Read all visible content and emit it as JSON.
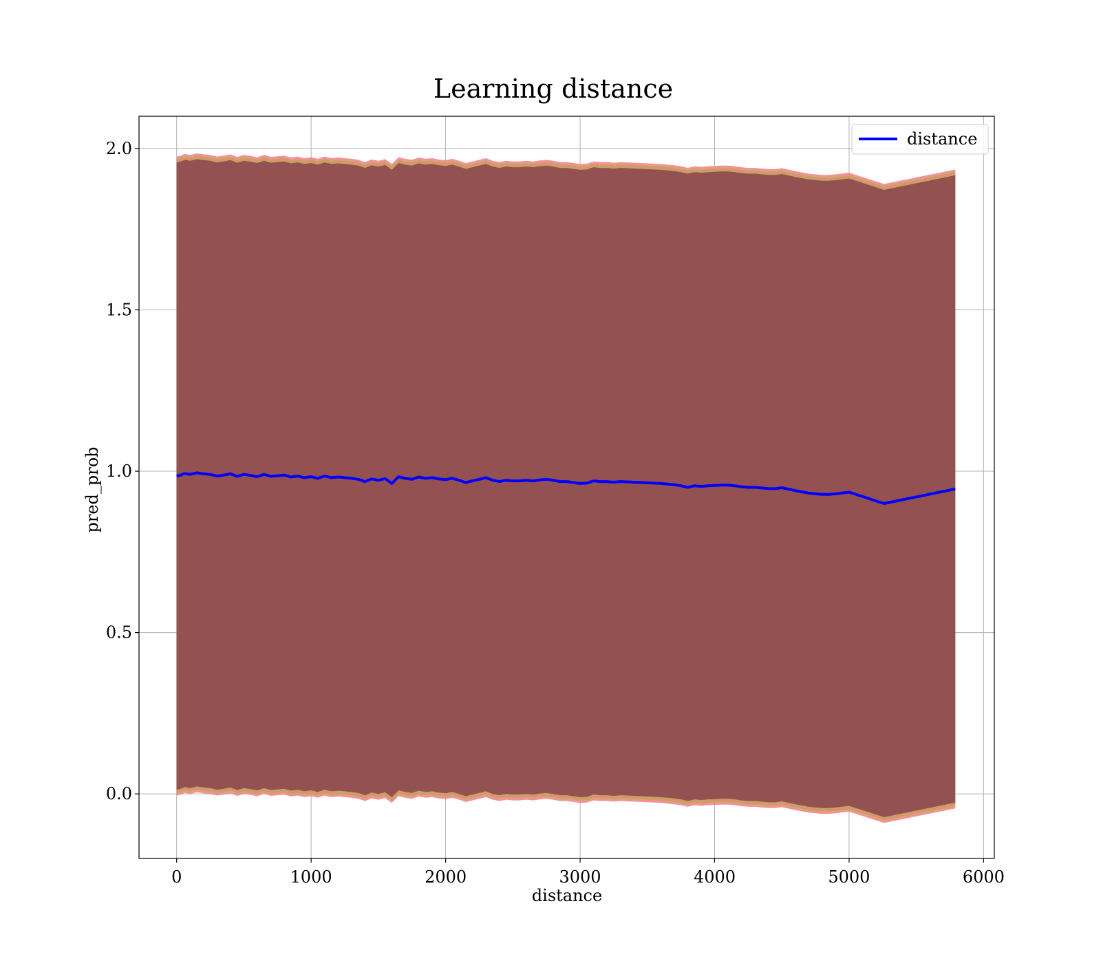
{
  "chart_data": {
    "type": "line",
    "title": "Learning distance",
    "xlabel": "distance",
    "ylabel": "pred_prob",
    "xlim": [
      -280,
      6080
    ],
    "ylim": [
      -0.2,
      2.1
    ],
    "xticks": [
      0,
      1000,
      2000,
      3000,
      4000,
      5000,
      6000
    ],
    "xtick_labels": [
      "0",
      "1000",
      "2000",
      "3000",
      "4000",
      "5000",
      "6000"
    ],
    "yticks": [
      0.0,
      0.5,
      1.0,
      1.5,
      2.0
    ],
    "ytick_labels": [
      "0.0",
      "0.5",
      "1.0",
      "1.5",
      "2.0"
    ],
    "grid": true,
    "legend_position": "top-right",
    "colors": {
      "line": "#0000ff",
      "band_outer": "#f08080",
      "band_middle": "#c8a060",
      "band_inner": "#7a3048"
    },
    "series": [
      {
        "name": "distance",
        "x": [
          0,
          30,
          60,
          100,
          150,
          200,
          250,
          300,
          350,
          400,
          450,
          500,
          550,
          600,
          650,
          700,
          750,
          800,
          850,
          900,
          950,
          1000,
          1050,
          1100,
          1150,
          1200,
          1250,
          1300,
          1350,
          1400,
          1450,
          1500,
          1550,
          1600,
          1650,
          1700,
          1750,
          1800,
          1850,
          1900,
          1950,
          2000,
          2050,
          2100,
          2150,
          2200,
          2250,
          2300,
          2350,
          2400,
          2450,
          2500,
          2550,
          2600,
          2650,
          2700,
          2750,
          2800,
          2850,
          2900,
          2950,
          3000,
          3050,
          3100,
          3150,
          3200,
          3250,
          3300,
          3350,
          3400,
          3450,
          3500,
          3550,
          3600,
          3650,
          3700,
          3750,
          3800,
          3850,
          3900,
          3950,
          4000,
          4050,
          4100,
          4150,
          4200,
          4250,
          4300,
          4350,
          4400,
          4450,
          4500,
          4600,
          4700,
          4750,
          4800,
          4850,
          4900,
          5000,
          5260,
          5790
        ],
        "y": [
          0.985,
          0.988,
          0.993,
          0.99,
          0.995,
          0.992,
          0.99,
          0.985,
          0.988,
          0.992,
          0.984,
          0.99,
          0.987,
          0.983,
          0.99,
          0.984,
          0.986,
          0.988,
          0.982,
          0.985,
          0.98,
          0.983,
          0.978,
          0.985,
          0.98,
          0.982,
          0.98,
          0.978,
          0.975,
          0.968,
          0.976,
          0.972,
          0.977,
          0.962,
          0.983,
          0.978,
          0.975,
          0.982,
          0.978,
          0.98,
          0.976,
          0.974,
          0.978,
          0.972,
          0.965,
          0.97,
          0.975,
          0.98,
          0.972,
          0.968,
          0.972,
          0.97,
          0.97,
          0.972,
          0.97,
          0.973,
          0.975,
          0.972,
          0.968,
          0.968,
          0.965,
          0.962,
          0.963,
          0.97,
          0.968,
          0.968,
          0.966,
          0.968,
          0.967,
          0.966,
          0.965,
          0.964,
          0.963,
          0.962,
          0.96,
          0.958,
          0.955,
          0.95,
          0.955,
          0.953,
          0.955,
          0.956,
          0.957,
          0.957,
          0.955,
          0.952,
          0.95,
          0.95,
          0.948,
          0.946,
          0.946,
          0.949,
          0.94,
          0.932,
          0.93,
          0.928,
          0.928,
          0.93,
          0.935,
          0.9,
          0.945
        ]
      }
    ]
  }
}
